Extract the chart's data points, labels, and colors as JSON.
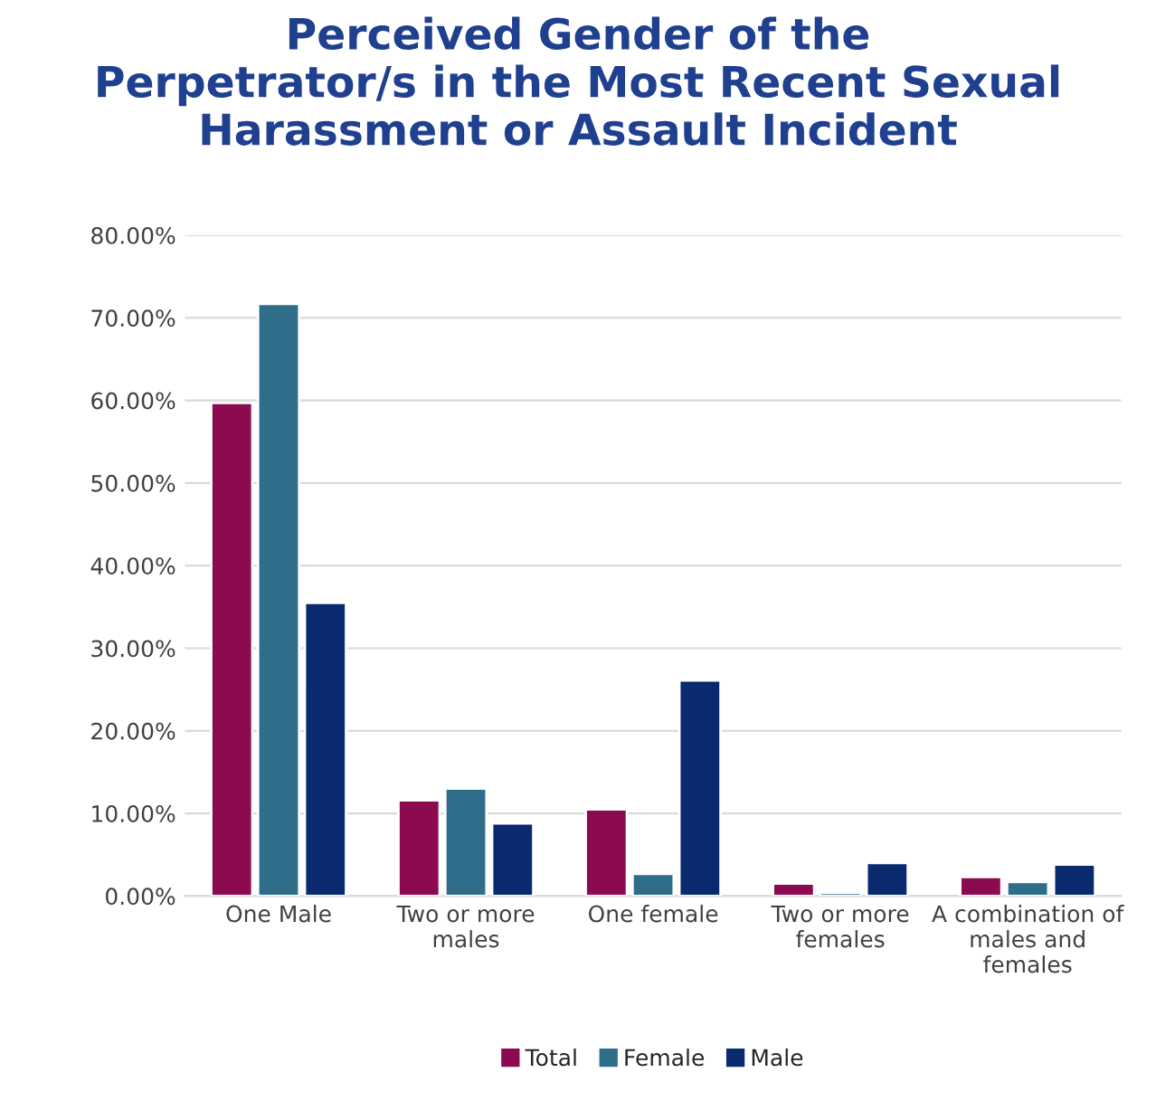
{
  "chart_data": {
    "type": "bar",
    "title": "Perceived Gender of the\nPerpetrator/s in the Most Recent Sexual\nHarassment or Assault Incident",
    "categories": [
      "One Male",
      "Two or more\nmales",
      "One female",
      "Two or more\nfemales",
      "A combination of\nmales and\nfemales"
    ],
    "series": [
      {
        "name": "Total",
        "color": "#8b0a50",
        "values": [
          59.7,
          11.6,
          10.5,
          1.5,
          2.3
        ]
      },
      {
        "name": "Female",
        "color": "#2e6e8a",
        "values": [
          71.7,
          13.0,
          2.7,
          0.4,
          1.7
        ]
      },
      {
        "name": "Male",
        "color": "#0a2a70",
        "values": [
          35.5,
          8.8,
          26.1,
          4.0,
          3.8
        ]
      }
    ],
    "ylim": [
      0,
      80
    ],
    "yticks": [
      {
        "value": 0,
        "label": "0.00%"
      },
      {
        "value": 10,
        "label": "10.00%"
      },
      {
        "value": 20,
        "label": "20.00%"
      },
      {
        "value": 30,
        "label": "30.00%"
      },
      {
        "value": 40,
        "label": "40.00%"
      },
      {
        "value": 50,
        "label": "50.00%"
      },
      {
        "value": 60,
        "label": "60.00%"
      },
      {
        "value": 70,
        "label": "70.00%"
      },
      {
        "value": 80,
        "label": "80.00%"
      }
    ],
    "grid": "y",
    "legend": "bottom"
  }
}
